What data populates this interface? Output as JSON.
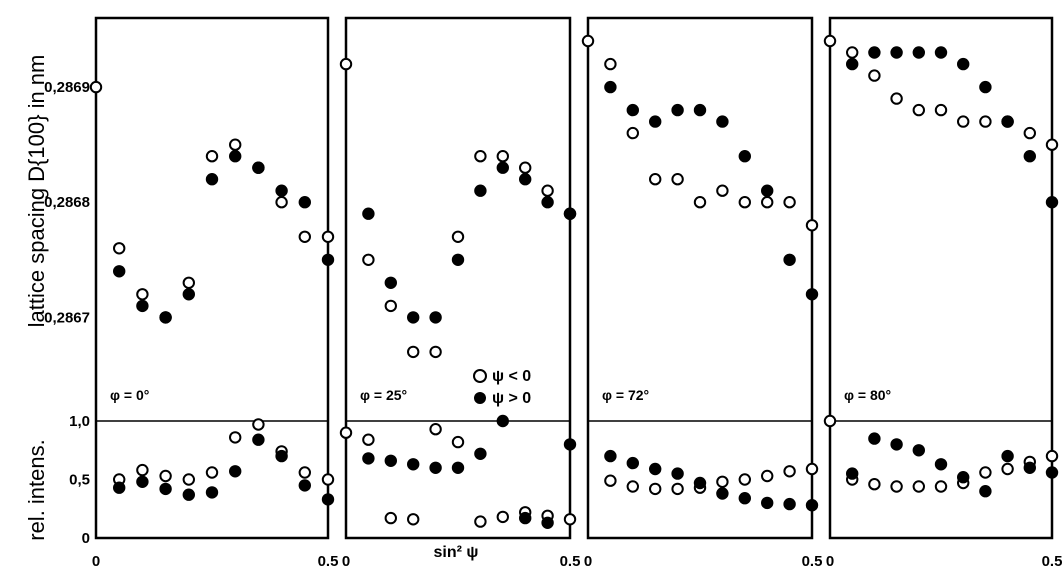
{
  "figure": {
    "ylabel_top": "lattice spacing D{100} in nm",
    "ylabel_bottom": "rel. intens.",
    "xlabel": "sin² ψ",
    "legend": [
      "ψ < 0",
      "ψ > 0"
    ]
  },
  "chart_data": [
    {
      "type": "scatter",
      "panel": "phi = 0°",
      "label": "φ = 0°",
      "upper": {
        "ylabel": "lattice spacing D{100} in nm",
        "yticks": [
          0.2867,
          0.2868,
          0.2869
        ],
        "ylim": [
          0.28661,
          0.28696
        ],
        "series": [
          {
            "name": "ψ < 0",
            "x": [
              0.0,
              0.05,
              0.1,
              0.15,
              0.2,
              0.25,
              0.3,
              0.35,
              0.4,
              0.45,
              0.5
            ],
            "y": [
              0.2869,
              0.28676,
              0.28672,
              0.2867,
              0.28673,
              0.28684,
              0.28685,
              0.28683,
              0.2868,
              0.28677,
              0.28677
            ]
          },
          {
            "name": "ψ > 0",
            "x": [
              0.05,
              0.1,
              0.15,
              0.2,
              0.25,
              0.3,
              0.35,
              0.4,
              0.45,
              0.5
            ],
            "y": [
              0.28674,
              0.28671,
              0.2867,
              0.28672,
              0.28682,
              0.28684,
              0.28683,
              0.28681,
              0.2868,
              0.28675
            ]
          }
        ]
      },
      "lower": {
        "ylabel": "rel. intens.",
        "yticks": [
          0,
          0.5,
          1.0
        ],
        "ylim": [
          0,
          1.0
        ],
        "series": [
          {
            "name": "ψ < 0",
            "x": [
              0.05,
              0.1,
              0.15,
              0.2,
              0.25,
              0.3,
              0.35,
              0.4,
              0.45,
              0.5
            ],
            "y": [
              0.5,
              0.58,
              0.53,
              0.5,
              0.56,
              0.86,
              0.97,
              0.74,
              0.56,
              0.5
            ]
          },
          {
            "name": "ψ > 0",
            "x": [
              0.05,
              0.1,
              0.15,
              0.2,
              0.25,
              0.3,
              0.35,
              0.4,
              0.45,
              0.5
            ],
            "y": [
              0.43,
              0.48,
              0.42,
              0.37,
              0.39,
              0.57,
              0.84,
              0.7,
              0.45,
              0.33
            ]
          }
        ]
      }
    },
    {
      "type": "scatter",
      "panel": "phi = 25°",
      "label": "φ = 25°",
      "upper": {
        "ylim": [
          0.28661,
          0.28696
        ],
        "series": [
          {
            "name": "ψ < 0",
            "x": [
              0.0,
              0.05,
              0.1,
              0.15,
              0.2,
              0.25,
              0.3,
              0.35,
              0.4,
              0.45,
              0.5
            ],
            "y": [
              0.28692,
              0.28675,
              0.28671,
              0.28667,
              0.28667,
              0.28677,
              0.28684,
              0.28684,
              0.28683,
              0.28681,
              0.28679
            ]
          },
          {
            "name": "ψ > 0",
            "x": [
              0.05,
              0.1,
              0.15,
              0.2,
              0.25,
              0.3,
              0.35,
              0.4,
              0.45,
              0.5
            ],
            "y": [
              0.28679,
              0.28673,
              0.2867,
              0.2867,
              0.28675,
              0.28681,
              0.28683,
              0.28682,
              0.2868,
              0.28679
            ]
          }
        ]
      },
      "lower": {
        "ylim": [
          0,
          1.0
        ],
        "series": [
          {
            "name": "ψ < 0",
            "x": [
              0.0,
              0.05,
              0.1,
              0.15,
              0.2,
              0.25,
              0.3,
              0.35,
              0.4,
              0.45,
              0.5
            ],
            "y": [
              0.9,
              0.84,
              0.17,
              0.16,
              0.93,
              0.82,
              0.14,
              0.18,
              0.22,
              0.19,
              0.16
            ]
          },
          {
            "name": "ψ > 0",
            "x": [
              0.05,
              0.1,
              0.15,
              0.2,
              0.25,
              0.3,
              0.35,
              0.4,
              0.45,
              0.5
            ],
            "y": [
              0.68,
              0.66,
              0.63,
              0.6,
              0.6,
              0.72,
              1.0,
              0.17,
              0.13,
              0.8
            ]
          }
        ]
      }
    },
    {
      "type": "scatter",
      "panel": "phi = 72°",
      "label": "φ = 72°",
      "upper": {
        "ylim": [
          0.28661,
          0.28696
        ],
        "series": [
          {
            "name": "ψ < 0",
            "x": [
              0.0,
              0.05,
              0.1,
              0.15,
              0.2,
              0.25,
              0.3,
              0.35,
              0.4,
              0.45,
              0.5
            ],
            "y": [
              0.28694,
              0.28692,
              0.28686,
              0.28682,
              0.28682,
              0.2868,
              0.28681,
              0.2868,
              0.2868,
              0.2868,
              0.28678
            ]
          },
          {
            "name": "ψ > 0",
            "x": [
              0.05,
              0.1,
              0.15,
              0.2,
              0.25,
              0.3,
              0.35,
              0.4,
              0.45,
              0.5
            ],
            "y": [
              0.2869,
              0.28688,
              0.28687,
              0.28688,
              0.28688,
              0.28687,
              0.28684,
              0.28681,
              0.28675,
              0.28672
            ]
          }
        ]
      },
      "lower": {
        "ylim": [
          0,
          1.0
        ],
        "series": [
          {
            "name": "ψ < 0",
            "x": [
              0.05,
              0.1,
              0.15,
              0.2,
              0.25,
              0.3,
              0.35,
              0.4,
              0.45,
              0.5
            ],
            "y": [
              0.49,
              0.44,
              0.42,
              0.42,
              0.43,
              0.48,
              0.5,
              0.53,
              0.57,
              0.59
            ]
          },
          {
            "name": "ψ > 0",
            "x": [
              0.05,
              0.1,
              0.15,
              0.2,
              0.25,
              0.3,
              0.35,
              0.4,
              0.45,
              0.5
            ],
            "y": [
              0.7,
              0.64,
              0.59,
              0.55,
              0.47,
              0.38,
              0.34,
              0.3,
              0.29,
              0.28
            ]
          }
        ]
      }
    },
    {
      "type": "scatter",
      "panel": "phi = 80°",
      "label": "φ = 80°",
      "upper": {
        "ylim": [
          0.28661,
          0.28696
        ],
        "series": [
          {
            "name": "ψ < 0",
            "x": [
              0.0,
              0.05,
              0.1,
              0.15,
              0.2,
              0.25,
              0.3,
              0.35,
              0.4,
              0.45,
              0.5
            ],
            "y": [
              0.28694,
              0.28693,
              0.28691,
              0.28689,
              0.28688,
              0.28688,
              0.28687,
              0.28687,
              0.28687,
              0.28686,
              0.28685
            ]
          },
          {
            "name": "ψ > 0",
            "x": [
              0.05,
              0.1,
              0.15,
              0.2,
              0.25,
              0.3,
              0.35,
              0.4,
              0.45,
              0.5
            ],
            "y": [
              0.28692,
              0.28693,
              0.28693,
              0.28693,
              0.28693,
              0.28692,
              0.2869,
              0.28687,
              0.28684,
              0.2868
            ]
          }
        ]
      },
      "lower": {
        "ylim": [
          0,
          1.0
        ],
        "series": [
          {
            "name": "ψ < 0",
            "x": [
              0.0,
              0.05,
              0.1,
              0.15,
              0.2,
              0.25,
              0.3,
              0.35,
              0.4,
              0.45,
              0.5
            ],
            "y": [
              1.0,
              0.5,
              0.46,
              0.44,
              0.44,
              0.44,
              0.47,
              0.56,
              0.59,
              0.65,
              0.7
            ]
          },
          {
            "name": "ψ > 0",
            "x": [
              0.05,
              0.1,
              0.15,
              0.2,
              0.25,
              0.3,
              0.35,
              0.4,
              0.45,
              0.5
            ],
            "y": [
              0.55,
              0.85,
              0.8,
              0.75,
              0.63,
              0.52,
              0.4,
              0.7,
              0.6,
              0.56
            ]
          }
        ]
      }
    }
  ],
  "ticks": {
    "x_labels": [
      "0",
      "0.5"
    ],
    "upper_y_labels": [
      "0,2867",
      "0,2868",
      "0,2869"
    ],
    "lower_y_labels": [
      "0",
      "0,5",
      "1,0"
    ],
    "xlim": [
      0,
      0.5
    ]
  }
}
